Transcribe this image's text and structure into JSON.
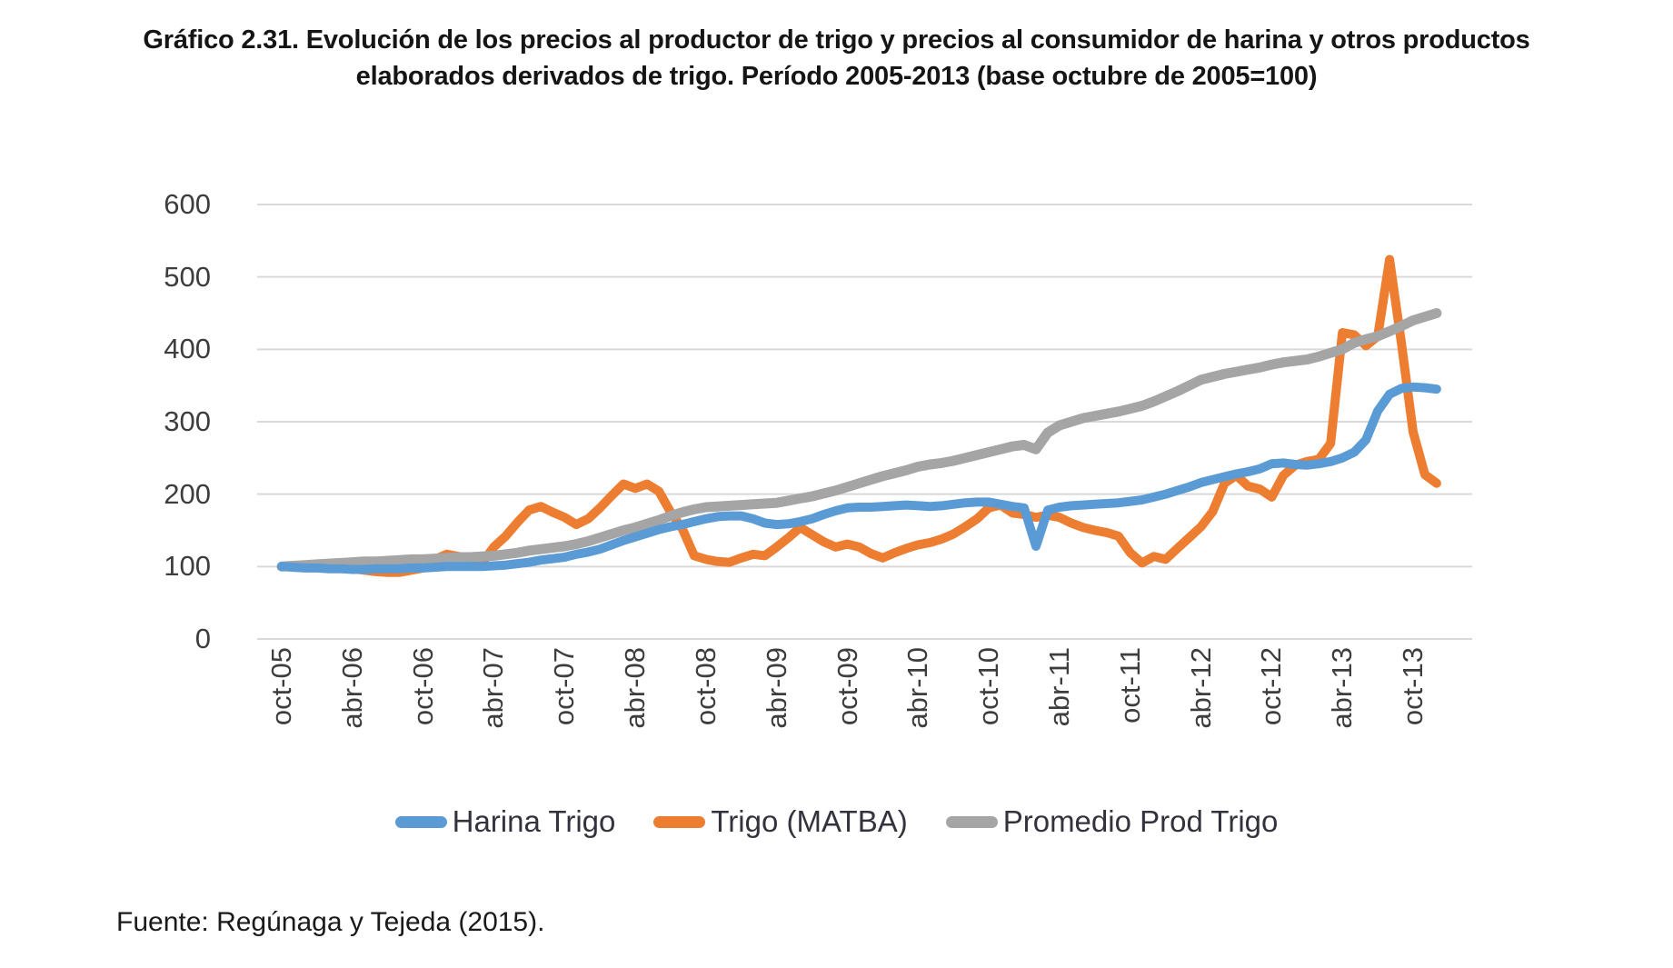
{
  "title": {
    "line1": "Gráfico 2.31. Evolución de los precios al productor de trigo y precios al consumidor de harina y otros productos",
    "line2": "elaborados derivados de trigo. Período 2005-2013 (base octubre de 2005=100)"
  },
  "source": "Fuente: Regúnaga y Tejeda (2015).",
  "colors": {
    "gridline": "#d9d9d9",
    "axis_text": "#3d3d3d",
    "harina": "#5b9bd5",
    "trigo": "#ed7d31",
    "promedio": "#a5a5a5"
  },
  "chart_data": {
    "type": "line",
    "title": "Evolución de precios al productor de trigo y al consumidor de harina (base octubre 2005=100)",
    "xlabel": "",
    "ylabel": "",
    "ylim": [
      0,
      600
    ],
    "y_ticks": [
      0,
      100,
      200,
      300,
      400,
      500,
      600
    ],
    "grid": true,
    "legend_position": "bottom",
    "x_tick_labels": [
      "oct-05",
      "abr-06",
      "oct-06",
      "abr-07",
      "oct-07",
      "abr-08",
      "oct-08",
      "abr-09",
      "oct-09",
      "abr-10",
      "oct-10",
      "abr-11",
      "oct-11",
      "abr-12",
      "oct-12",
      "abr-13",
      "oct-13"
    ],
    "tick_interval_months": 6,
    "points_are_monthly_from": "oct-05",
    "series": [
      {
        "name": "Harina Trigo",
        "color": "#5b9bd5",
        "stroke_width": 10,
        "z": 2,
        "values": [
          100,
          99,
          98,
          98,
          97,
          97,
          96,
          96,
          97,
          97,
          97,
          98,
          98,
          99,
          100,
          100,
          100,
          100,
          101,
          102,
          104,
          106,
          109,
          111,
          113,
          117,
          120,
          124,
          130,
          136,
          141,
          146,
          151,
          155,
          158,
          162,
          166,
          169,
          170,
          170,
          166,
          160,
          158,
          159,
          162,
          166,
          172,
          177,
          181,
          182,
          182,
          183,
          184,
          185,
          184,
          183,
          184,
          186,
          188,
          189,
          189,
          186,
          183,
          181,
          128,
          178,
          182,
          184,
          185,
          186,
          187,
          188,
          190,
          192,
          196,
          200,
          205,
          210,
          216,
          220,
          224,
          228,
          231,
          235,
          242,
          243,
          241,
          240,
          242,
          245,
          250,
          258,
          275,
          315,
          338,
          346,
          348,
          347,
          345
        ]
      },
      {
        "name": "Trigo (MATBA)",
        "color": "#ed7d31",
        "stroke_width": 10,
        "z": 0,
        "values": [
          100,
          100,
          101,
          102,
          103,
          100,
          97,
          95,
          93,
          92,
          92,
          95,
          98,
          110,
          117,
          114,
          108,
          105,
          127,
          142,
          161,
          178,
          183,
          175,
          168,
          158,
          166,
          181,
          198,
          214,
          208,
          214,
          204,
          175,
          152,
          115,
          110,
          107,
          106,
          112,
          117,
          115,
          127,
          140,
          154,
          144,
          134,
          127,
          131,
          127,
          118,
          112,
          119,
          125,
          130,
          133,
          138,
          145,
          155,
          166,
          181,
          185,
          174,
          172,
          168,
          171,
          168,
          160,
          154,
          150,
          147,
          142,
          119,
          105,
          114,
          110,
          125,
          140,
          155,
          176,
          215,
          226,
          211,
          207,
          196,
          226,
          240,
          245,
          248,
          270,
          423,
          420,
          405,
          418,
          524,
          410,
          286,
          227,
          215
        ]
      },
      {
        "name": "Promedio Prod Trigo",
        "color": "#a5a5a5",
        "stroke_width": 11,
        "z": 1,
        "values": [
          100,
          101,
          102,
          103,
          104,
          105,
          106,
          107,
          107,
          108,
          109,
          110,
          110,
          111,
          112,
          113,
          113,
          114,
          115,
          117,
          119,
          122,
          124,
          126,
          128,
          131,
          135,
          140,
          145,
          150,
          154,
          159,
          164,
          170,
          175,
          179,
          182,
          183,
          184,
          185,
          186,
          187,
          188,
          191,
          194,
          197,
          201,
          205,
          210,
          215,
          220,
          225,
          229,
          233,
          238,
          241,
          243,
          246,
          250,
          254,
          258,
          262,
          266,
          268,
          262,
          285,
          295,
          300,
          305,
          308,
          311,
          314,
          318,
          322,
          328,
          335,
          342,
          350,
          358,
          362,
          366,
          369,
          372,
          375,
          379,
          382,
          384,
          386,
          390,
          395,
          400,
          409,
          414,
          418,
          425,
          432,
          440,
          445,
          450
        ]
      }
    ]
  }
}
